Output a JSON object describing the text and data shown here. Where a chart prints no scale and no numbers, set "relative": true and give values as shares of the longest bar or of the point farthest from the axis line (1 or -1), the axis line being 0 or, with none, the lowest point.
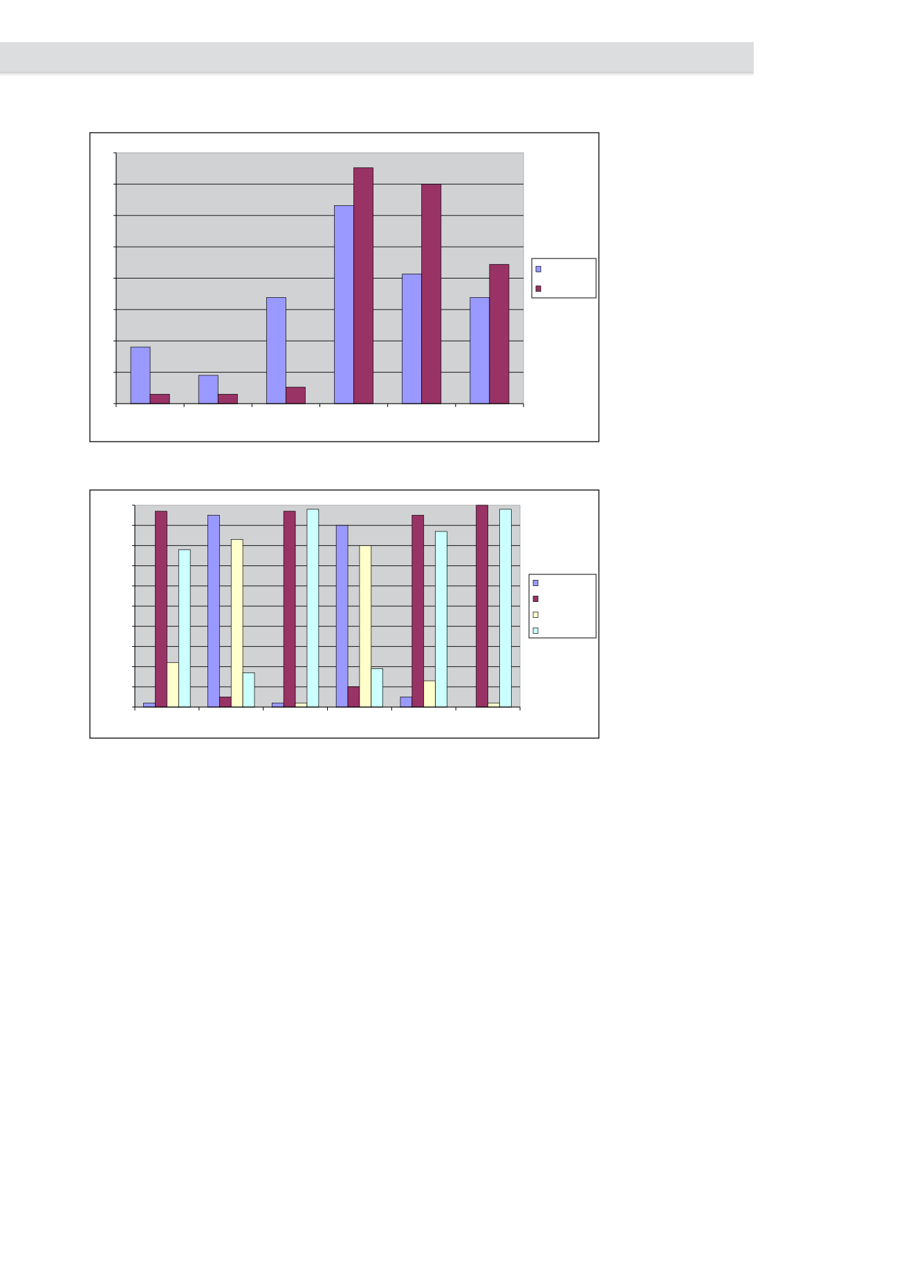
{
  "chart_data": [
    {
      "type": "bar",
      "categories": [
        null,
        null,
        null,
        null,
        null,
        null
      ],
      "relative": true,
      "grid": "y",
      "series": [
        {
          "color": "#9999ff",
          "values": [
            0.24,
            0.12,
            0.45,
            0.84,
            0.55,
            0.45
          ]
        },
        {
          "color": "#993366",
          "values": [
            0.04,
            0.04,
            0.07,
            1,
            0.93,
            0.59
          ]
        }
      ]
    },
    {
      "type": "bar",
      "categories": [
        null,
        null,
        null,
        null,
        null,
        null
      ],
      "relative": true,
      "grid": "y",
      "series": [
        {
          "color": "#9999ff",
          "values": [
            0.02,
            0.95,
            0.02,
            0.9,
            0.05,
            null
          ]
        },
        {
          "color": "#993366",
          "values": [
            0.97,
            0.05,
            0.97,
            0.1,
            0.95,
            1
          ]
        },
        {
          "color": "#ffffcc",
          "values": [
            0.22,
            0.83,
            0.02,
            0.8,
            0.13,
            0.02
          ]
        },
        {
          "color": "#ccffff",
          "values": [
            0.78,
            0.17,
            0.98,
            0.19,
            0.87,
            0.98
          ]
        }
      ]
    }
  ]
}
